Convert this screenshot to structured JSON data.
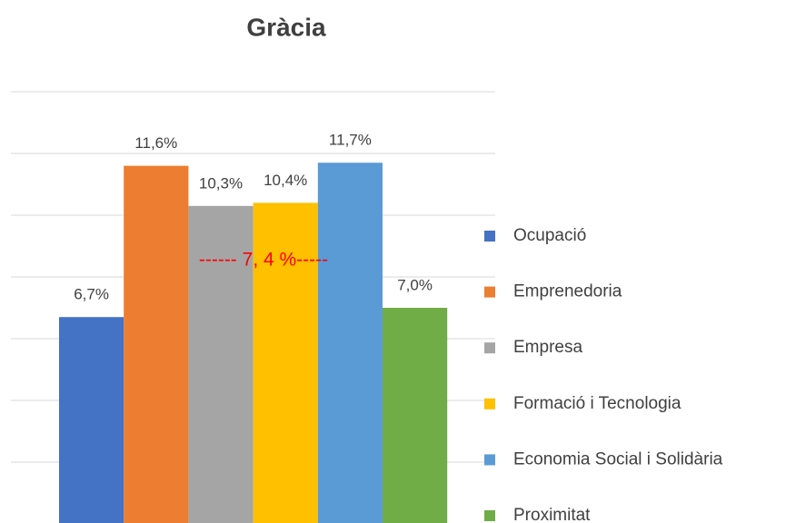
{
  "chart_data": {
    "type": "bar",
    "title": "Gràcia",
    "annotation": "------ 7, 4 %-----",
    "ylim": [
      0,
      14
    ],
    "yticks": [
      0,
      2,
      4,
      6,
      8,
      10,
      12,
      14
    ],
    "grid": true,
    "legend": "right",
    "series": [
      {
        "name": "Ocupació",
        "color": "#4472c4",
        "values": [
          6.7
        ],
        "value_labels": [
          "6,7%"
        ]
      },
      {
        "name": "Emprenedoria",
        "color": "#ed7d31",
        "values": [
          11.6
        ],
        "value_labels": [
          "11,6%"
        ]
      },
      {
        "name": "Empresa",
        "color": "#a5a5a5",
        "values": [
          10.3
        ],
        "value_labels": [
          "10,3%"
        ]
      },
      {
        "name": "Formació i Tecnologia",
        "color": "#ffc000",
        "values": [
          10.4
        ],
        "value_labels": [
          "10,4%"
        ]
      },
      {
        "name": "Economia Social i Solidària",
        "color": "#5b9bd5",
        "values": [
          11.7
        ],
        "value_labels": [
          "11,7%"
        ]
      },
      {
        "name": "Proximitat",
        "color": "#70ad47",
        "values": [
          7.0
        ],
        "value_labels": [
          "7,0%"
        ]
      }
    ]
  }
}
